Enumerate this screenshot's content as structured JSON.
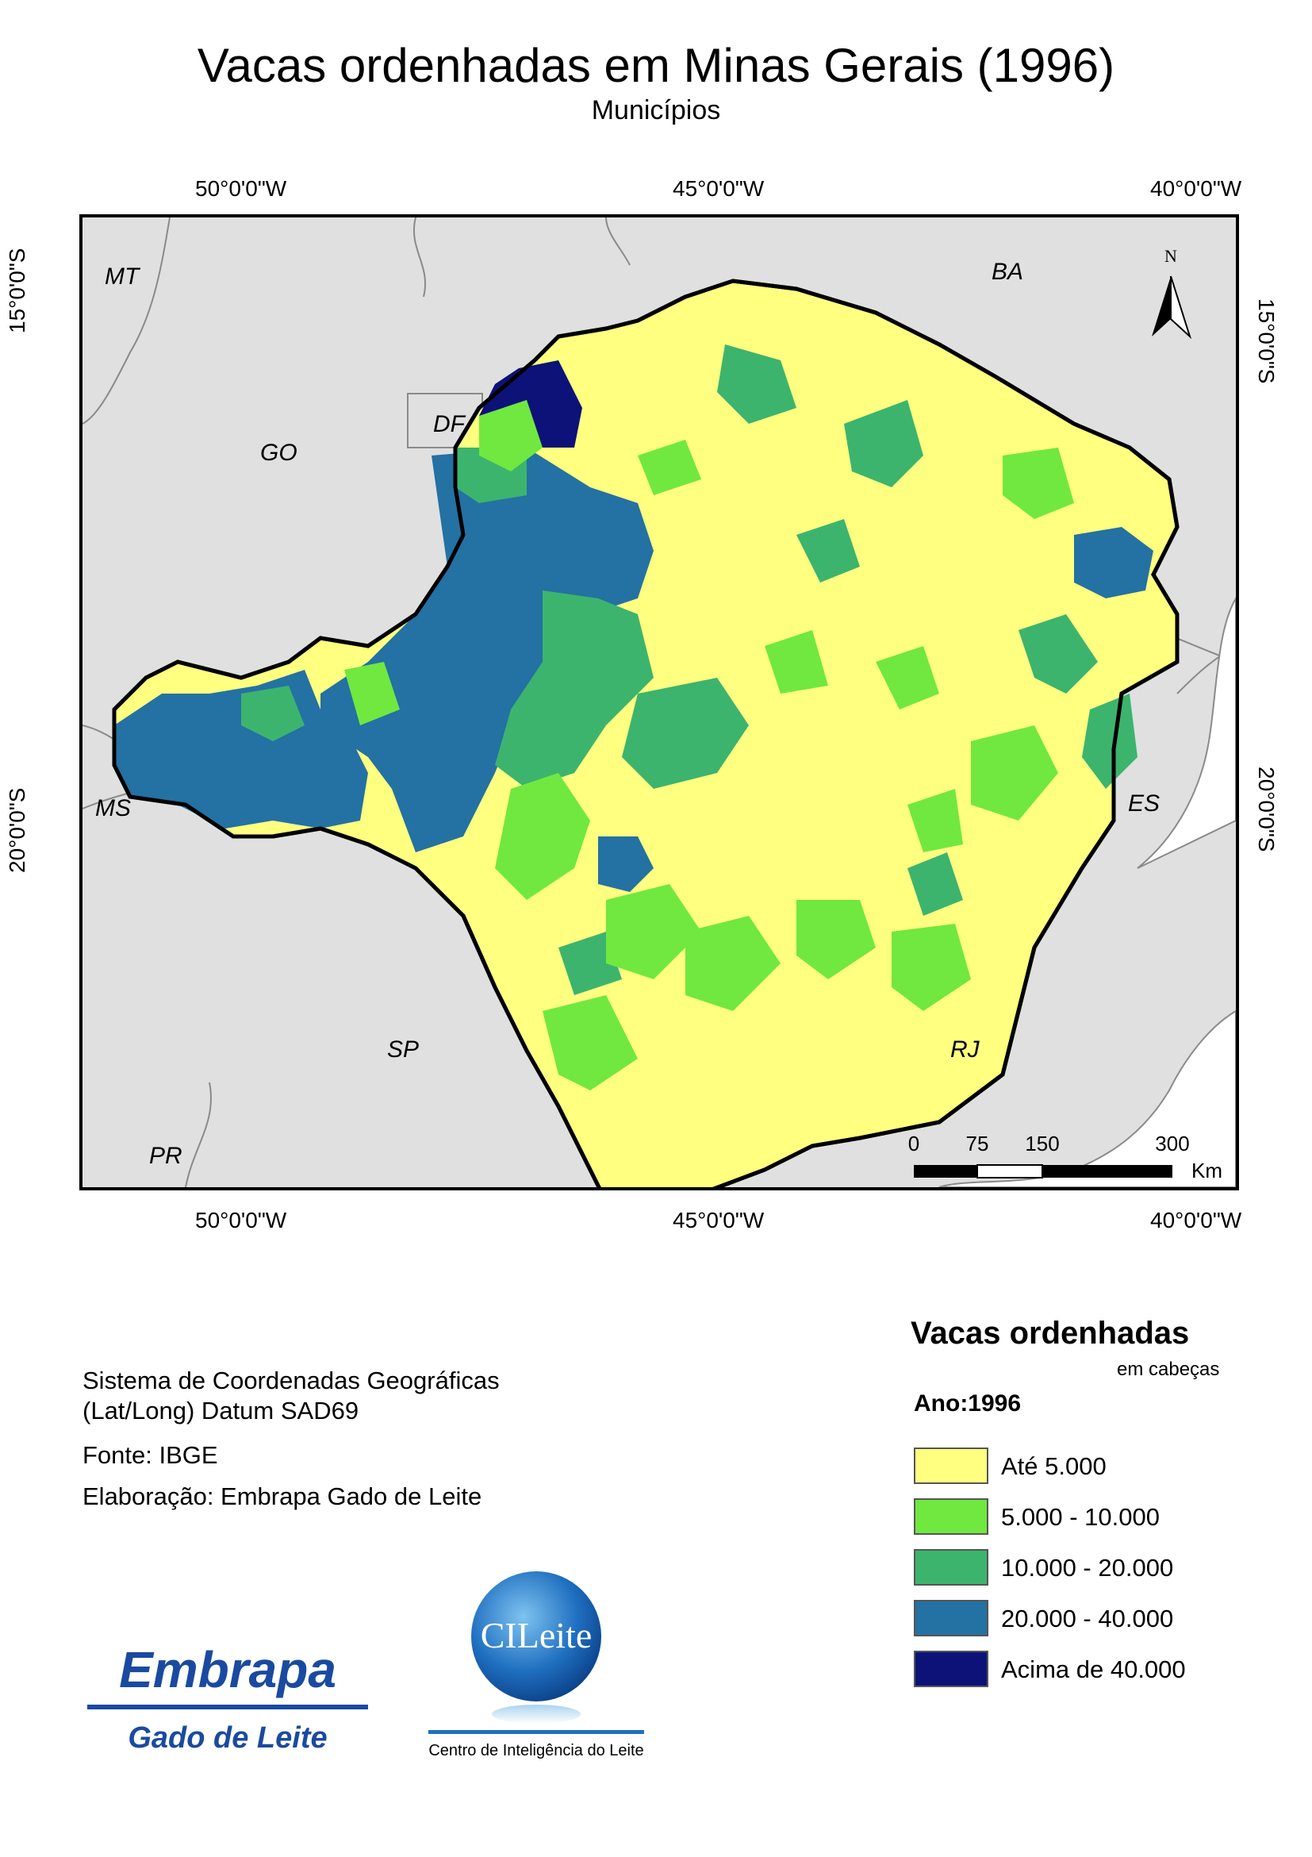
{
  "title": "Vacas ordenhadas em Minas Gerais (1996)",
  "subtitle": "Municípios",
  "graticule": {
    "top": [
      "50°0'0\"W",
      "45°0'0\"W",
      "40°0'0\"W"
    ],
    "bottom": [
      "50°0'0\"W",
      "45°0'0\"W",
      "40°0'0\"W"
    ],
    "left": [
      "15°0'0\"S",
      "20°0'0\"S"
    ],
    "right": [
      "15°0'0\"S",
      "20°0'0\"S"
    ]
  },
  "states": [
    "MT",
    "BA",
    "GO",
    "DF",
    "MS",
    "ES",
    "SP",
    "RJ",
    "PR"
  ],
  "north_arrow": {
    "label": "N",
    "icon": "north-arrow-icon"
  },
  "scale_bar": {
    "ticks": [
      "0",
      "75",
      "150",
      "300"
    ],
    "unit": "Km"
  },
  "notes": {
    "coordinate_system_1": "Sistema de Coordenadas Geográficas",
    "coordinate_system_2": "(Lat/Long) Datum SAD69",
    "source": "Fonte: IBGE",
    "credit": "Elaboração: Embrapa Gado de Leite"
  },
  "legend": {
    "title": "Vacas ordenhadas",
    "unit": "em cabeças",
    "year": "Ano:1996",
    "classes": [
      {
        "label": "Até 5.000",
        "color": "#ffff80"
      },
      {
        "label": "5.000 - 10.000",
        "color": "#70e840"
      },
      {
        "label": "10.000 - 20.000",
        "color": "#3cb46e"
      },
      {
        "label": "20.000 - 40.000",
        "color": "#2471a3"
      },
      {
        "label": "Acima de 40.000",
        "color": "#0c1278"
      }
    ]
  },
  "logos": {
    "embrapa_word": "Embrapa",
    "embrapa_sub": "Gado de Leite",
    "cileite_word": "CILeite",
    "cileite_caption": "Centro de Inteligência do Leite"
  },
  "colors": {
    "background": "#e0e0e0",
    "boundary": "#888888"
  }
}
